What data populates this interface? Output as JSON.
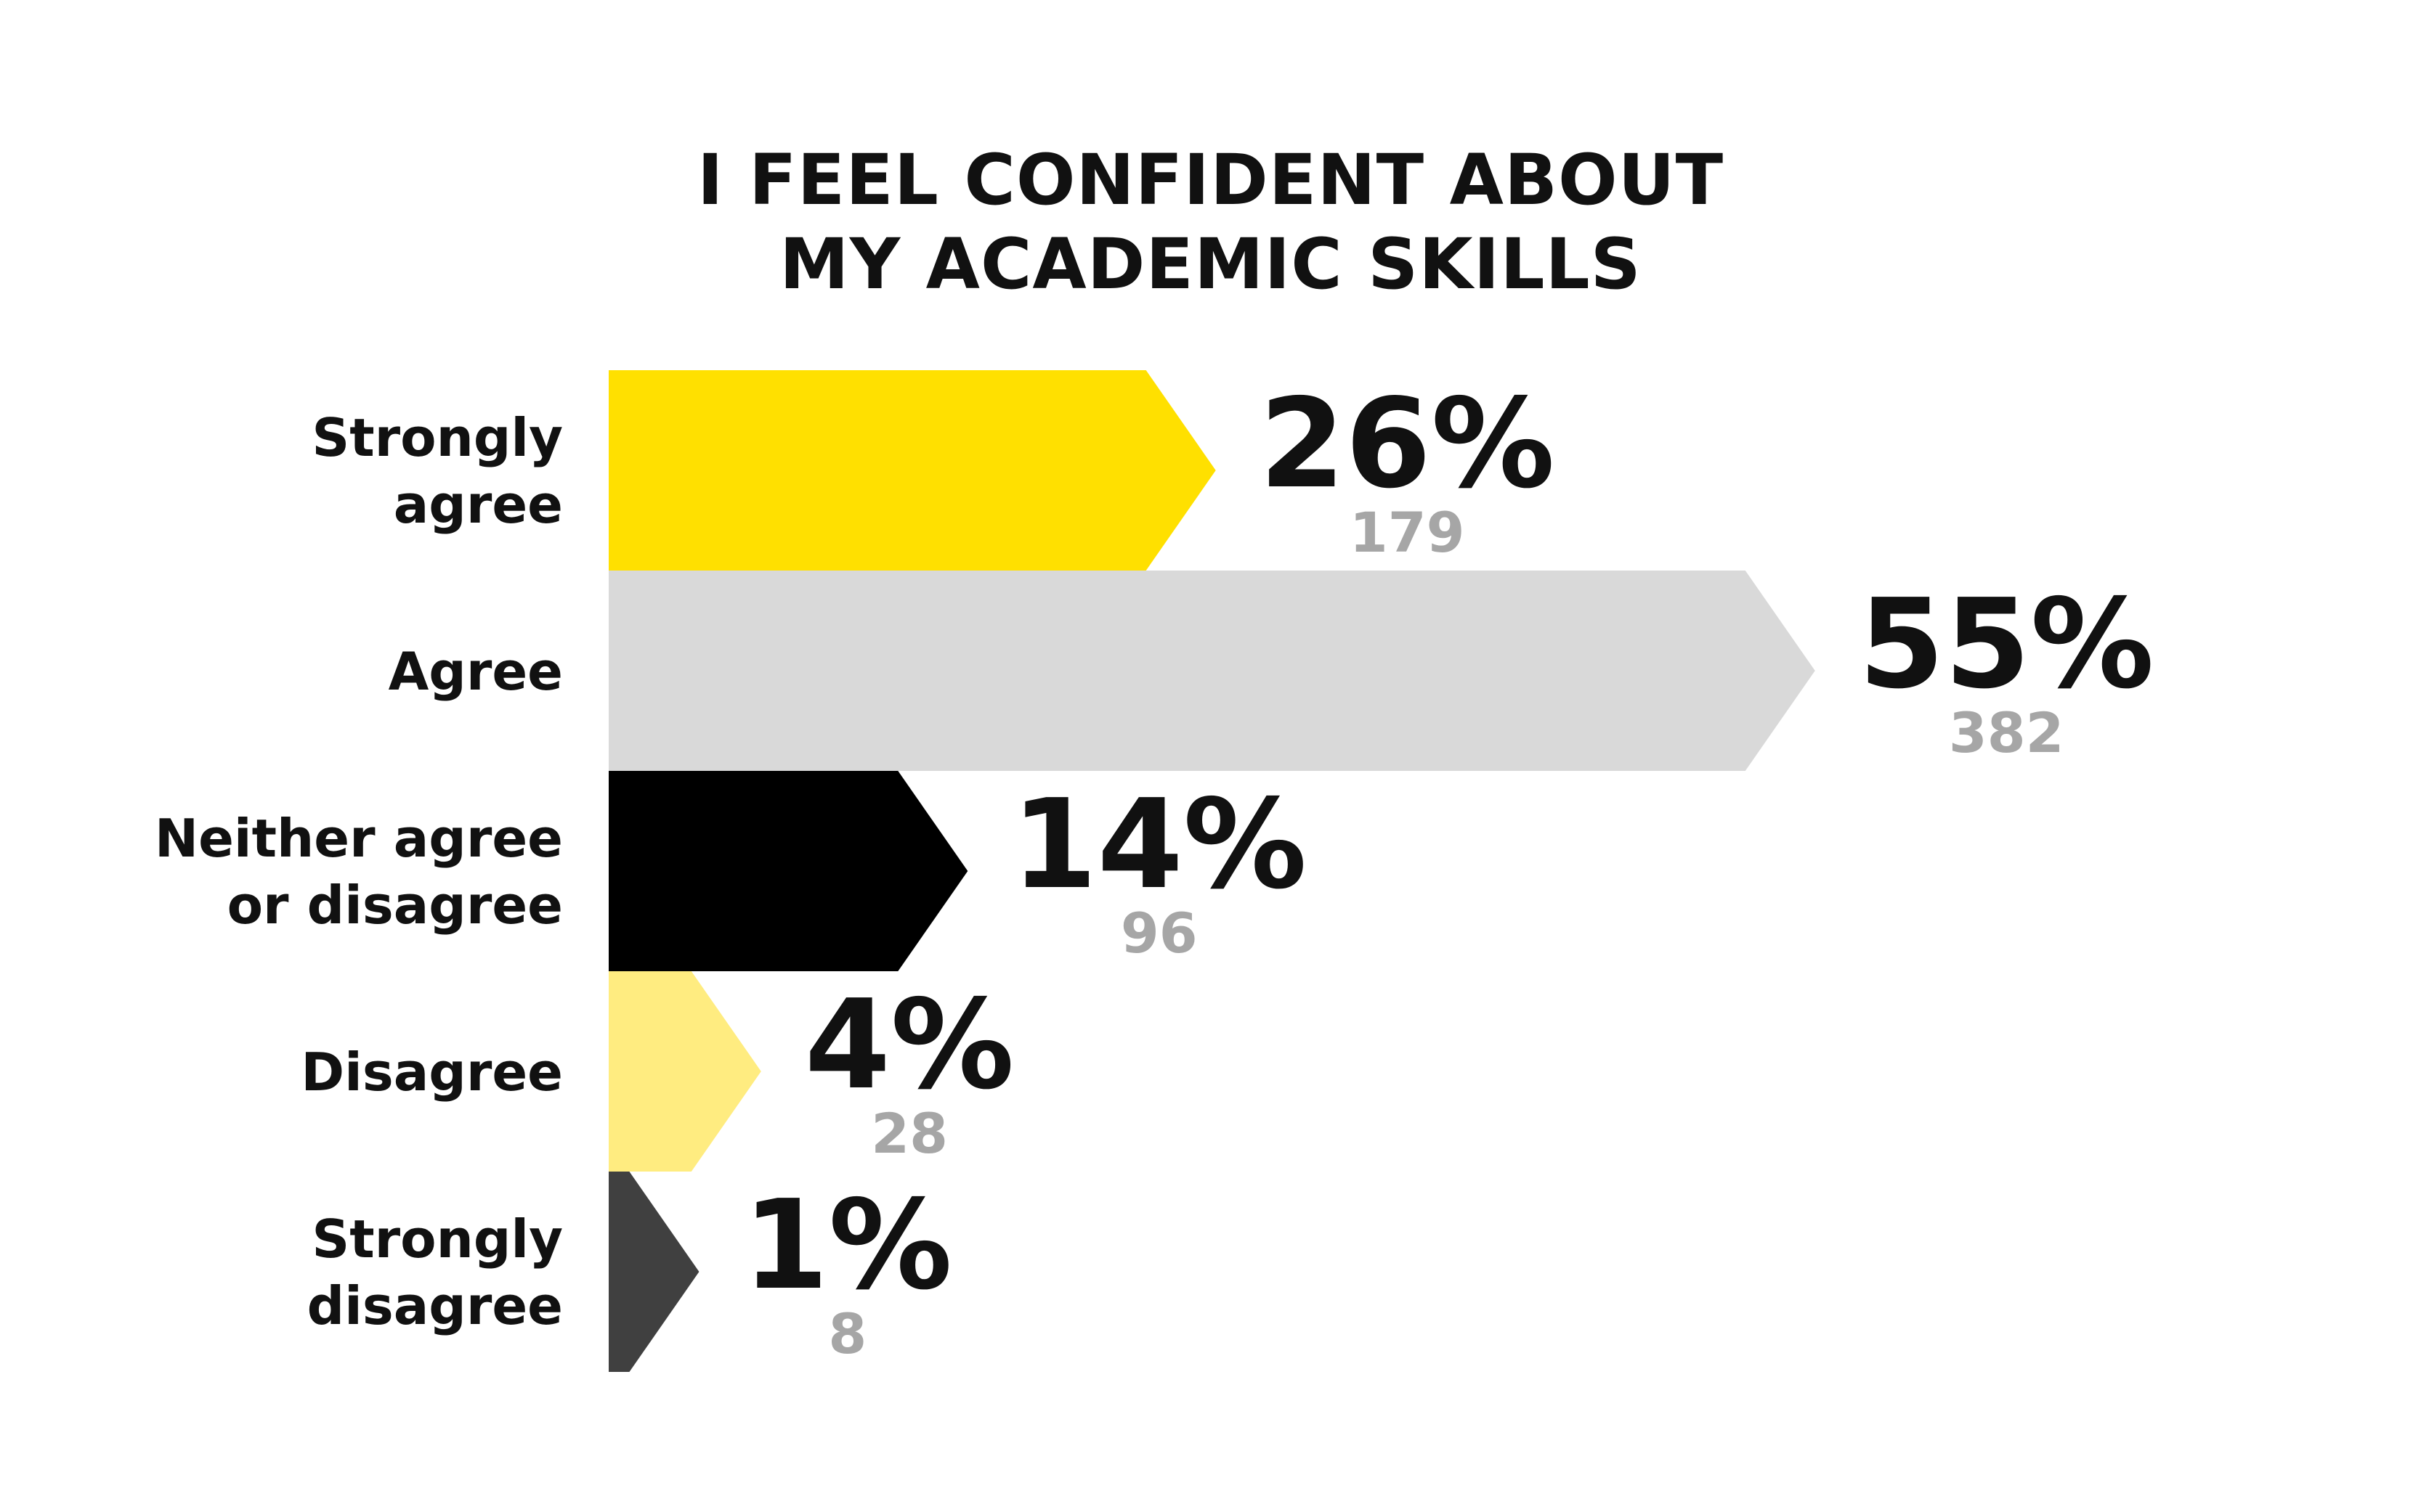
{
  "chart_data": {
    "type": "bar",
    "orientation": "horizontal",
    "title_lines": [
      "I FEEL CONFIDENT ABOUT",
      "MY ACADEMIC SKILLS"
    ],
    "categories": [
      [
        "Strongly",
        "agree"
      ],
      [
        "Agree"
      ],
      [
        "Neither agree",
        "or disagree"
      ],
      [
        "Disagree"
      ],
      [
        "Strongly",
        "disagree"
      ]
    ],
    "values": [
      26,
      55,
      14,
      4,
      1
    ],
    "value_labels": [
      "26%",
      "55%",
      "14%",
      "4%",
      "1%"
    ],
    "counts": [
      "179",
      "382",
      "96",
      "28",
      "8"
    ],
    "colors": [
      "#ffe000",
      "#d9d9d9",
      "#000000",
      "#ffec80",
      "#404040"
    ],
    "grid": false,
    "legend": "none"
  }
}
